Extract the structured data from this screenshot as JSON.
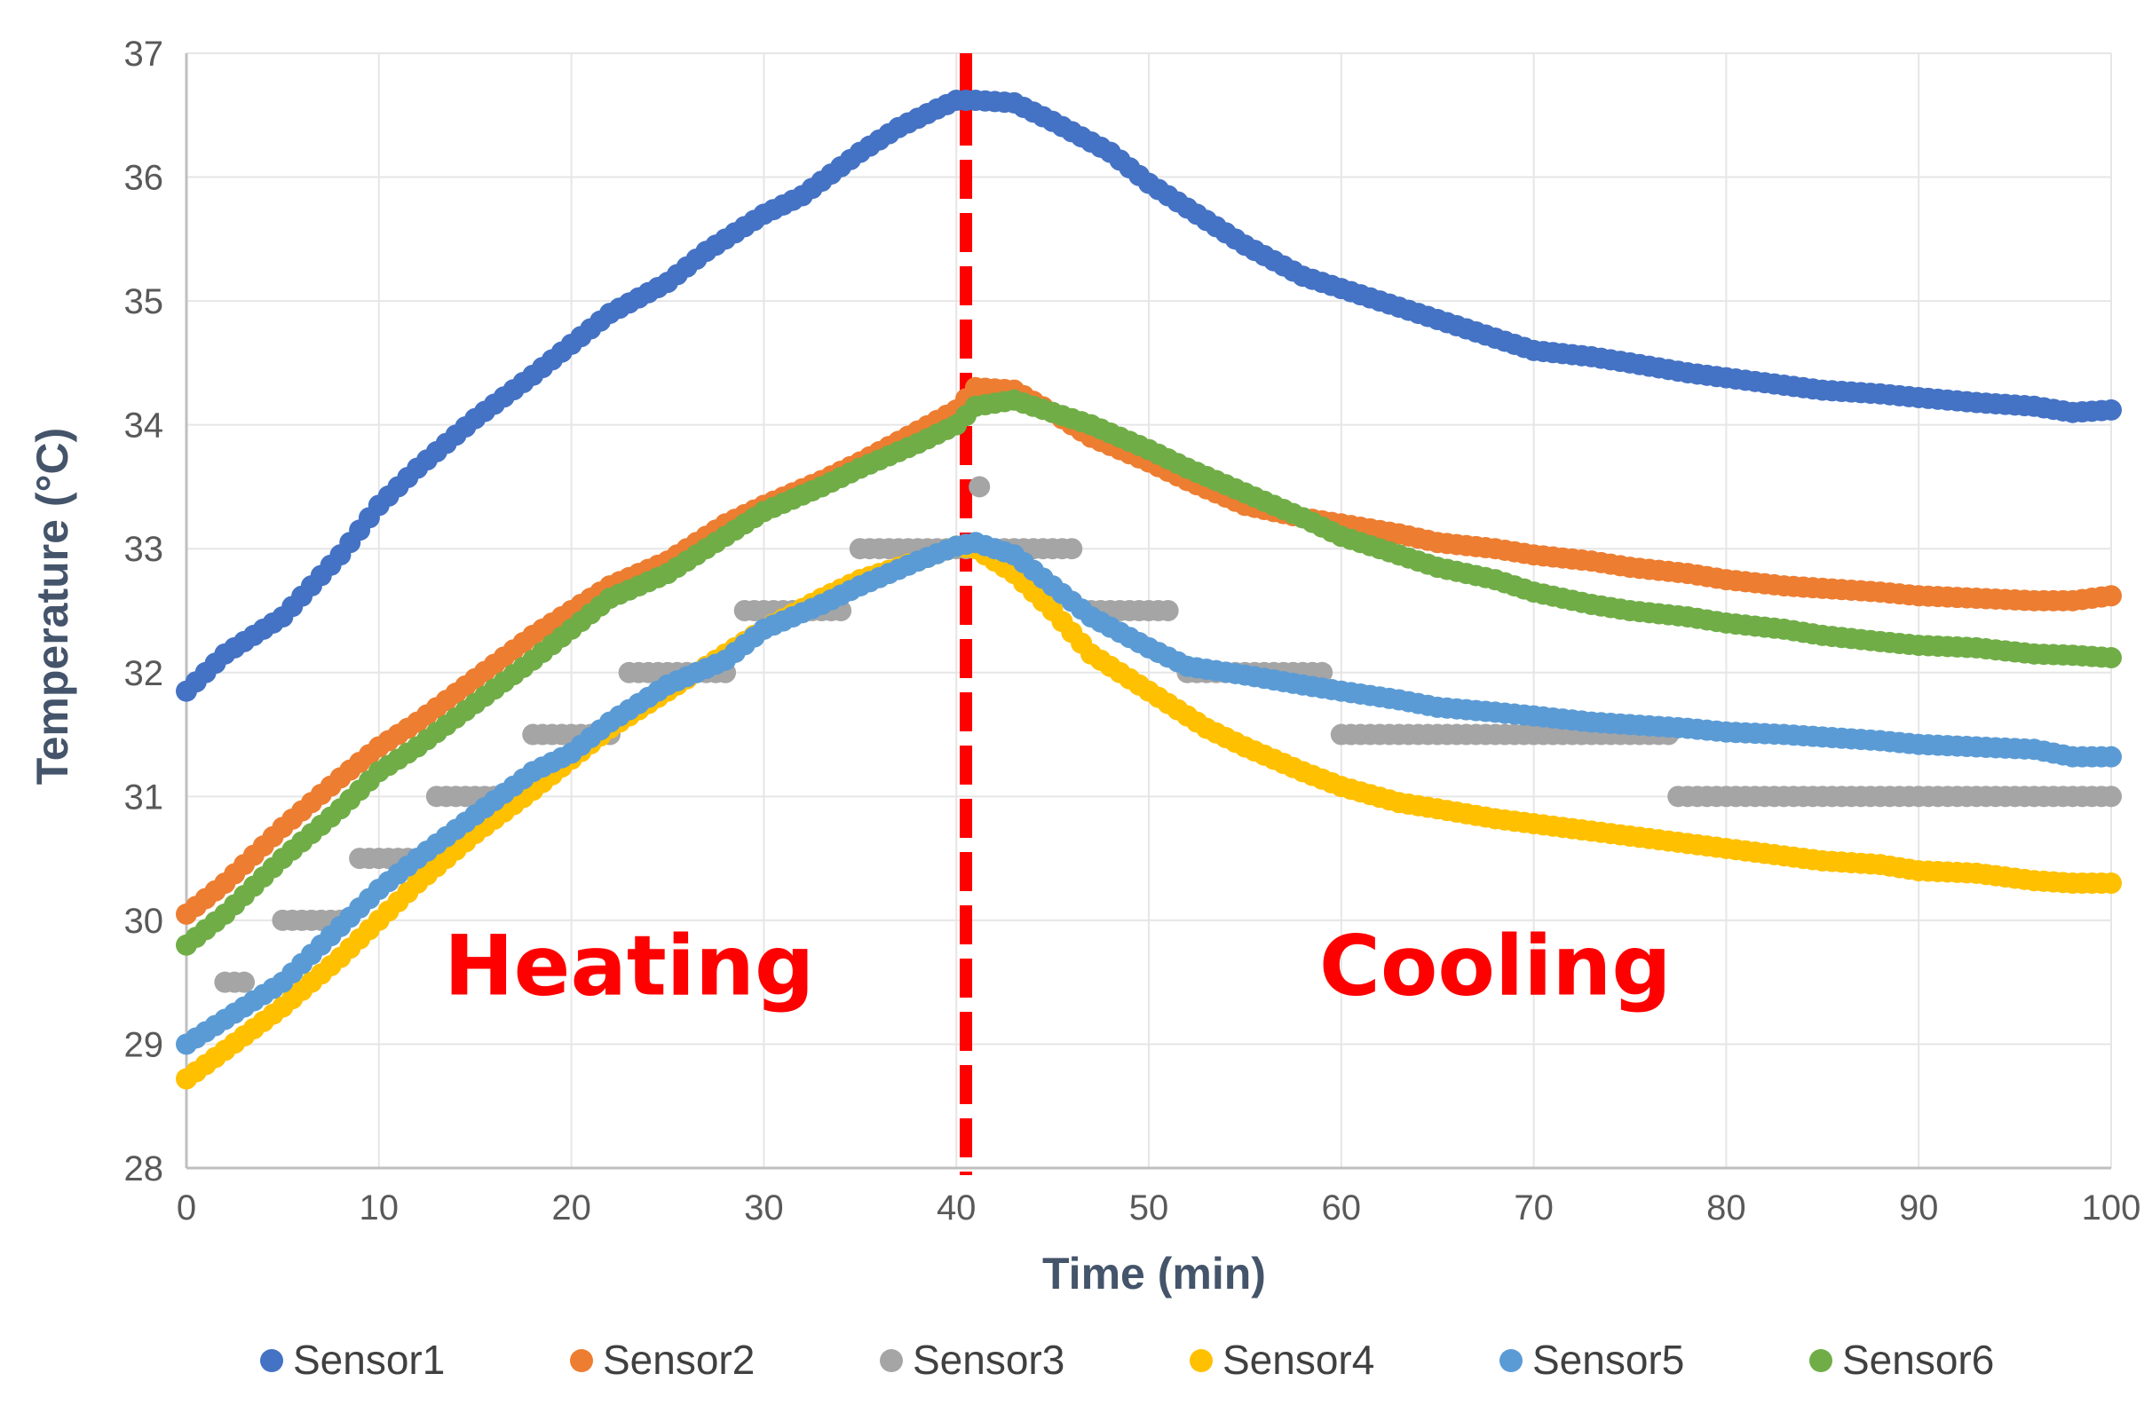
{
  "chart_data": {
    "type": "scatter",
    "title": "",
    "xlabel": "Time (min)",
    "ylabel": "Temperature (°C)",
    "xlim": [
      0,
      100
    ],
    "ylim": [
      28,
      37
    ],
    "xticks": [
      "0",
      "10",
      "20",
      "30",
      "40",
      "50",
      "60",
      "70",
      "80",
      "90",
      "100"
    ],
    "yticks": [
      "28",
      "29",
      "30",
      "31",
      "32",
      "33",
      "34",
      "35",
      "36",
      "37"
    ],
    "grid": true,
    "legend_position": "bottom",
    "annotations": [
      {
        "text": "Heating",
        "x": 23,
        "y": 29.4,
        "color": "#ff0000"
      },
      {
        "text": "Cooling",
        "x": 68,
        "y": 29.4,
        "color": "#ff0000"
      }
    ],
    "divider": {
      "x": 40.5,
      "color": "#ff0000",
      "style": "dashed"
    },
    "series": [
      {
        "name": "Sensor1",
        "color": "#4472c4",
        "points": [
          [
            0,
            31.85
          ],
          [
            2,
            32.15
          ],
          [
            5,
            32.45
          ],
          [
            8,
            32.95
          ],
          [
            10,
            33.35
          ],
          [
            12,
            33.65
          ],
          [
            15,
            34.05
          ],
          [
            18,
            34.4
          ],
          [
            20,
            34.65
          ],
          [
            22,
            34.9
          ],
          [
            25,
            35.15
          ],
          [
            27,
            35.4
          ],
          [
            30,
            35.7
          ],
          [
            32,
            35.85
          ],
          [
            35,
            36.2
          ],
          [
            37,
            36.4
          ],
          [
            39,
            36.55
          ],
          [
            40,
            36.62
          ],
          [
            41,
            36.62
          ],
          [
            43,
            36.6
          ],
          [
            45,
            36.45
          ],
          [
            48,
            36.2
          ],
          [
            50,
            35.95
          ],
          [
            52,
            35.75
          ],
          [
            55,
            35.45
          ],
          [
            58,
            35.2
          ],
          [
            60,
            35.1
          ],
          [
            63,
            34.95
          ],
          [
            65,
            34.85
          ],
          [
            68,
            34.7
          ],
          [
            70,
            34.6
          ],
          [
            73,
            34.55
          ],
          [
            75,
            34.5
          ],
          [
            78,
            34.42
          ],
          [
            80,
            34.38
          ],
          [
            83,
            34.32
          ],
          [
            85,
            34.28
          ],
          [
            88,
            34.25
          ],
          [
            90,
            34.22
          ],
          [
            93,
            34.18
          ],
          [
            96,
            34.15
          ],
          [
            98,
            34.1
          ],
          [
            100,
            34.12
          ]
        ]
      },
      {
        "name": "Sensor2",
        "color": "#ed7d31",
        "points": [
          [
            0,
            30.05
          ],
          [
            2,
            30.3
          ],
          [
            5,
            30.75
          ],
          [
            8,
            31.15
          ],
          [
            10,
            31.4
          ],
          [
            12,
            31.6
          ],
          [
            15,
            31.95
          ],
          [
            18,
            32.3
          ],
          [
            20,
            32.5
          ],
          [
            22,
            32.7
          ],
          [
            25,
            32.9
          ],
          [
            28,
            33.2
          ],
          [
            30,
            33.35
          ],
          [
            33,
            33.55
          ],
          [
            35,
            33.7
          ],
          [
            38,
            33.95
          ],
          [
            40,
            34.12
          ],
          [
            41,
            34.3
          ],
          [
            43,
            34.28
          ],
          [
            45,
            34.1
          ],
          [
            47,
            33.9
          ],
          [
            50,
            33.7
          ],
          [
            52,
            33.55
          ],
          [
            55,
            33.35
          ],
          [
            58,
            33.25
          ],
          [
            60,
            33.2
          ],
          [
            63,
            33.12
          ],
          [
            65,
            33.05
          ],
          [
            68,
            33.0
          ],
          [
            70,
            32.95
          ],
          [
            73,
            32.9
          ],
          [
            75,
            32.85
          ],
          [
            78,
            32.8
          ],
          [
            80,
            32.75
          ],
          [
            83,
            32.7
          ],
          [
            85,
            32.68
          ],
          [
            88,
            32.65
          ],
          [
            90,
            32.62
          ],
          [
            93,
            32.6
          ],
          [
            96,
            32.58
          ],
          [
            98,
            32.58
          ],
          [
            100,
            32.62
          ]
        ]
      },
      {
        "name": "Sensor3",
        "color": "#a5a5a5",
        "points": [
          [
            2,
            29.5
          ],
          [
            3,
            29.5
          ],
          [
            5,
            30.0
          ],
          [
            8,
            30.0
          ],
          [
            9,
            30.5
          ],
          [
            12,
            30.5
          ],
          [
            13,
            31.0
          ],
          [
            17,
            31.0
          ],
          [
            18,
            31.5
          ],
          [
            22,
            31.5
          ],
          [
            23,
            32.0
          ],
          [
            28,
            32.0
          ],
          [
            29,
            32.5
          ],
          [
            34,
            32.5
          ],
          [
            35,
            33.0
          ],
          [
            41,
            33.0
          ],
          [
            41.2,
            33.5
          ],
          [
            42,
            33.0
          ],
          [
            46,
            33.0
          ],
          [
            47,
            32.5
          ],
          [
            51,
            32.5
          ],
          [
            52,
            32.0
          ],
          [
            59,
            32.0
          ],
          [
            60,
            31.5
          ],
          [
            77,
            31.5
          ],
          [
            77.5,
            31.0
          ],
          [
            100,
            31.0
          ]
        ]
      },
      {
        "name": "Sensor4",
        "color": "#ffc000",
        "points": [
          [
            0,
            28.72
          ],
          [
            2,
            28.95
          ],
          [
            5,
            29.3
          ],
          [
            8,
            29.7
          ],
          [
            10,
            30.0
          ],
          [
            12,
            30.3
          ],
          [
            15,
            30.7
          ],
          [
            18,
            31.05
          ],
          [
            20,
            31.3
          ],
          [
            22,
            31.55
          ],
          [
            25,
            31.85
          ],
          [
            28,
            32.15
          ],
          [
            30,
            32.35
          ],
          [
            33,
            32.6
          ],
          [
            35,
            32.75
          ],
          [
            38,
            32.9
          ],
          [
            40,
            33.02
          ],
          [
            41,
            33.0
          ],
          [
            43,
            32.8
          ],
          [
            45,
            32.5
          ],
          [
            47,
            32.15
          ],
          [
            50,
            31.85
          ],
          [
            53,
            31.55
          ],
          [
            55,
            31.4
          ],
          [
            58,
            31.2
          ],
          [
            60,
            31.08
          ],
          [
            63,
            30.95
          ],
          [
            65,
            30.9
          ],
          [
            68,
            30.82
          ],
          [
            70,
            30.78
          ],
          [
            73,
            30.72
          ],
          [
            75,
            30.68
          ],
          [
            78,
            30.62
          ],
          [
            80,
            30.58
          ],
          [
            83,
            30.52
          ],
          [
            85,
            30.48
          ],
          [
            88,
            30.45
          ],
          [
            90,
            30.4
          ],
          [
            93,
            30.38
          ],
          [
            96,
            30.32
          ],
          [
            98,
            30.3
          ],
          [
            100,
            30.3
          ]
        ]
      },
      {
        "name": "Sensor5",
        "color": "#5b9bd5",
        "points": [
          [
            0,
            29.0
          ],
          [
            2,
            29.2
          ],
          [
            5,
            29.5
          ],
          [
            8,
            29.95
          ],
          [
            10,
            30.25
          ],
          [
            12,
            30.5
          ],
          [
            15,
            30.85
          ],
          [
            18,
            31.2
          ],
          [
            20,
            31.35
          ],
          [
            22,
            31.6
          ],
          [
            25,
            31.9
          ],
          [
            28,
            32.1
          ],
          [
            30,
            32.35
          ],
          [
            33,
            32.55
          ],
          [
            35,
            32.7
          ],
          [
            38,
            32.9
          ],
          [
            40,
            33.02
          ],
          [
            41,
            33.05
          ],
          [
            43,
            32.95
          ],
          [
            45,
            32.7
          ],
          [
            47,
            32.45
          ],
          [
            50,
            32.2
          ],
          [
            52,
            32.05
          ],
          [
            55,
            31.98
          ],
          [
            58,
            31.9
          ],
          [
            60,
            31.85
          ],
          [
            63,
            31.78
          ],
          [
            65,
            31.72
          ],
          [
            68,
            31.68
          ],
          [
            70,
            31.65
          ],
          [
            73,
            31.6
          ],
          [
            75,
            31.58
          ],
          [
            78,
            31.55
          ],
          [
            80,
            31.52
          ],
          [
            83,
            31.5
          ],
          [
            85,
            31.48
          ],
          [
            88,
            31.45
          ],
          [
            90,
            31.42
          ],
          [
            93,
            31.4
          ],
          [
            96,
            31.38
          ],
          [
            98,
            31.32
          ],
          [
            100,
            31.32
          ]
        ]
      },
      {
        "name": "Sensor6",
        "color": "#70ad47",
        "points": [
          [
            0,
            29.8
          ],
          [
            2,
            30.05
          ],
          [
            5,
            30.5
          ],
          [
            8,
            30.9
          ],
          [
            10,
            31.2
          ],
          [
            12,
            31.4
          ],
          [
            15,
            31.75
          ],
          [
            18,
            32.1
          ],
          [
            20,
            32.35
          ],
          [
            22,
            32.6
          ],
          [
            25,
            32.8
          ],
          [
            28,
            33.1
          ],
          [
            30,
            33.3
          ],
          [
            33,
            33.5
          ],
          [
            35,
            33.65
          ],
          [
            38,
            33.85
          ],
          [
            40,
            34.0
          ],
          [
            41,
            34.15
          ],
          [
            43,
            34.2
          ],
          [
            45,
            34.1
          ],
          [
            47,
            34.0
          ],
          [
            50,
            33.8
          ],
          [
            52,
            33.65
          ],
          [
            55,
            33.45
          ],
          [
            58,
            33.25
          ],
          [
            60,
            33.1
          ],
          [
            63,
            32.95
          ],
          [
            65,
            32.85
          ],
          [
            68,
            32.75
          ],
          [
            70,
            32.65
          ],
          [
            73,
            32.55
          ],
          [
            75,
            32.5
          ],
          [
            78,
            32.45
          ],
          [
            80,
            32.4
          ],
          [
            83,
            32.35
          ],
          [
            85,
            32.3
          ],
          [
            88,
            32.25
          ],
          [
            90,
            32.22
          ],
          [
            93,
            32.2
          ],
          [
            96,
            32.15
          ],
          [
            98,
            32.14
          ],
          [
            100,
            32.12
          ]
        ]
      }
    ]
  }
}
